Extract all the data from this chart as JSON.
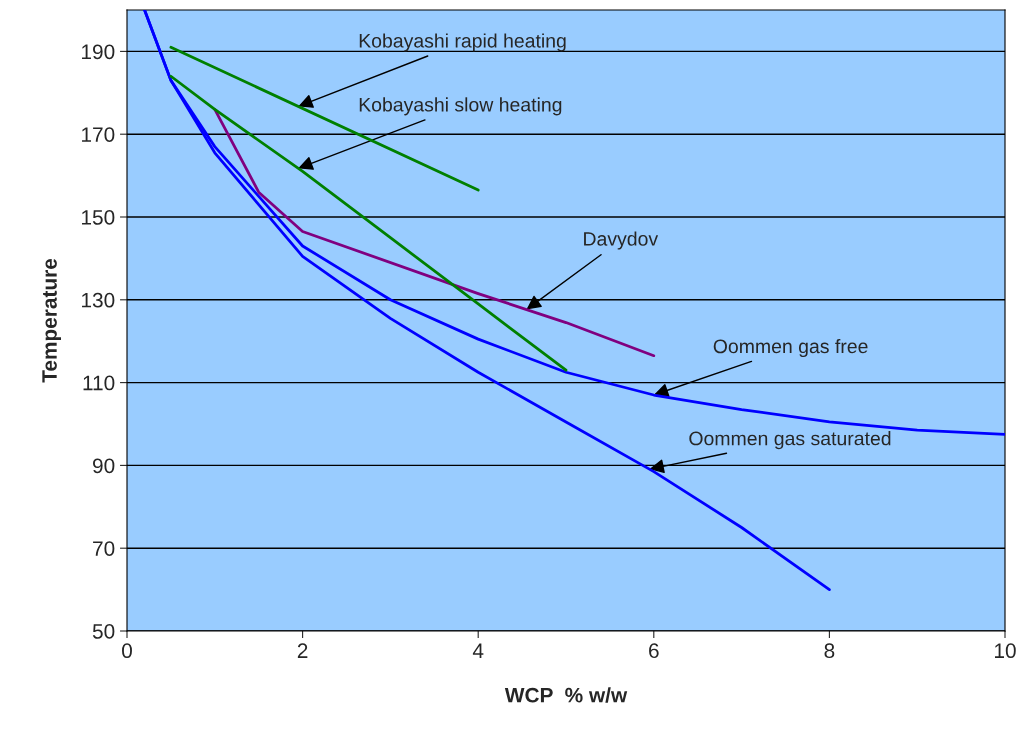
{
  "chart_data": {
    "type": "line",
    "xlabel": "WCP  % w/w",
    "ylabel": "Temperature",
    "xlim": [
      0,
      10
    ],
    "ylim": [
      50,
      200
    ],
    "xticks": [
      0,
      2,
      4,
      6,
      8,
      10
    ],
    "yticks": [
      50,
      70,
      90,
      110,
      130,
      150,
      170,
      190
    ],
    "grid": "y",
    "marker": "none",
    "line_style": "solid",
    "series": [
      {
        "color": "#0000ff",
        "x": [
          0.2,
          0.5,
          1,
          2,
          3,
          4,
          5,
          6,
          7,
          8,
          9,
          10
        ],
        "values": [
          200,
          183,
          167,
          143,
          130,
          120.5,
          112.5,
          107,
          103.5,
          100.5,
          98.5,
          97.5
        ]
      },
      {
        "color": "#0000ff",
        "x": [
          0.2,
          0.5,
          1,
          1.5,
          2,
          3,
          4,
          5,
          6,
          7,
          8
        ],
        "values": [
          200,
          183,
          165.5,
          153,
          140.5,
          125.5,
          112.5,
          100.5,
          88.5,
          75,
          60
        ]
      },
      {
        "color": "#800080",
        "x": [
          1,
          1.5,
          2,
          4,
          5,
          6
        ],
        "values": [
          176,
          156,
          146.5,
          131.5,
          124.5,
          116.5
        ]
      },
      {
        "color": "#008000",
        "x": [
          0.5,
          4
        ],
        "values": [
          191,
          156.5
        ]
      },
      {
        "color": "#008000",
        "x": [
          0.5,
          1,
          2,
          3,
          4,
          5
        ],
        "values": [
          184,
          176,
          161,
          145,
          129,
          113
        ]
      }
    ],
    "annotations": [
      {
        "text": "Kobayashi rapid heating",
        "x": 1.95,
        "y": 176.7
      },
      {
        "text": "Kobayashi slow heating",
        "x": 1.95,
        "y": 161.75
      },
      {
        "text": "Davydov",
        "x": 4.55,
        "y": 127.65
      },
      {
        "text": "Oommen gas free",
        "x": 6,
        "y": 107
      },
      {
        "text": "Oommen gas saturated",
        "x": 5.95,
        "y": 89.1
      }
    ]
  }
}
